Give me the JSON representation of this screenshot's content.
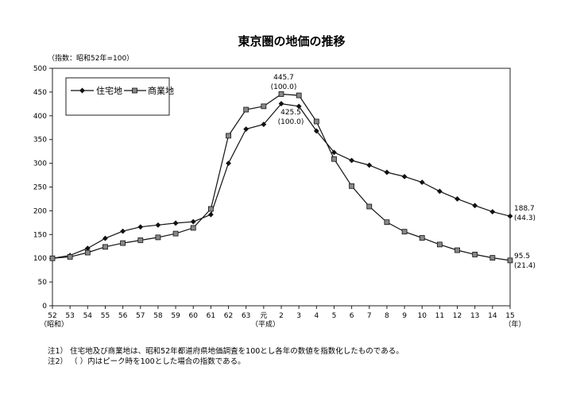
{
  "chart_data": {
    "type": "line",
    "title": "東京圏の地価の推移",
    "y_unit_label": "（指数：昭和52年=100）",
    "ylim": [
      0,
      500
    ],
    "yticks": [
      "0",
      "50",
      "100",
      "150",
      "200",
      "250",
      "300",
      "350",
      "400",
      "450",
      "500"
    ],
    "categories": [
      "52",
      "53",
      "54",
      "55",
      "56",
      "57",
      "58",
      "59",
      "60",
      "61",
      "62",
      "63",
      "元",
      "2",
      "3",
      "4",
      "5",
      "6",
      "7",
      "8",
      "9",
      "10",
      "11",
      "12",
      "13",
      "14",
      "15"
    ],
    "era_labels": {
      "showa": "（昭和）",
      "heisei": "（平成）",
      "year": "（年）"
    },
    "legend_position": "top-left",
    "series": [
      {
        "name": "住宅地",
        "marker": "diamond",
        "values": [
          100,
          106,
          121,
          142,
          157,
          166,
          170,
          174,
          177,
          192,
          300,
          372,
          382,
          425.5,
          420,
          368,
          323,
          306,
          296,
          281,
          272,
          260,
          241,
          225,
          211,
          198,
          188.7
        ]
      },
      {
        "name": "商業地",
        "marker": "square",
        "values": [
          100,
          103,
          112,
          124,
          132,
          138,
          144,
          152,
          164,
          204,
          358,
          413,
          420,
          445.7,
          443,
          388,
          309,
          252,
          209,
          176,
          156,
          143,
          129,
          117,
          108,
          101,
          95.5
        ]
      }
    ],
    "annotations": {
      "peak_commercial": {
        "value": "445.7",
        "index": "(100.0)"
      },
      "peak_residential": {
        "value": "425.5",
        "index": "(100.0)"
      },
      "end_residential": {
        "value": "188.7",
        "index": "(44.3)"
      },
      "end_commercial": {
        "value": "95.5",
        "index": "(21.4)"
      }
    },
    "grid": false
  },
  "notes": [
    "注1） 住宅地及び商業地は、昭和52年都道府県地価調査を100とし各年の数値を指数化したものである。",
    "注2） （ ）内はピーク時を100とした場合の指数である。"
  ]
}
